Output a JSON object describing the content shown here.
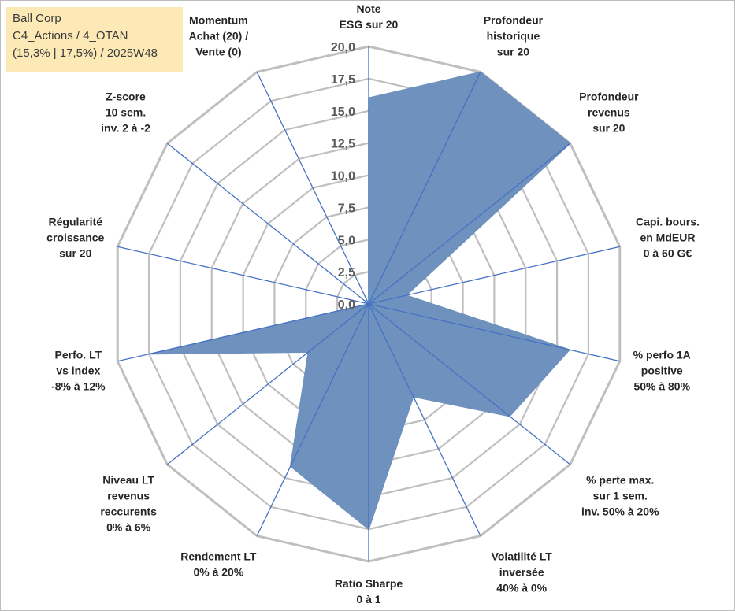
{
  "info": {
    "line1": "Ball Corp",
    "line2": "C4_Actions / 4_OTAN",
    "line3": "(15,3% | 17,5%) / 2025W48"
  },
  "chart_data": {
    "type": "radar",
    "scale": {
      "min": 0,
      "max": 20,
      "step": 2.5
    },
    "tick_labels": [
      "0,0",
      "2,5",
      "5,0",
      "7,5",
      "10,0",
      "12,5",
      "15,0",
      "17,5",
      "20,0"
    ],
    "axes": [
      [
        "Note",
        "ESG sur 20"
      ],
      [
        "Profondeur",
        "historique",
        "sur 20"
      ],
      [
        "Profondeur",
        "revenus",
        "sur 20"
      ],
      [
        "Capi. bours.",
        "en MdEUR",
        "0 à 60 G€"
      ],
      [
        "% perfo 1A",
        "positive",
        "50% à 80%"
      ],
      [
        "% perte max.",
        "sur 1 sem.",
        "inv. 50% à 20%"
      ],
      [
        "Volatilité LT",
        "inversée",
        "40% à 0%"
      ],
      [
        "Ratio Sharpe",
        "0 à 1"
      ],
      [
        "Rendement LT",
        "0% à 20%"
      ],
      [
        "Niveau LT",
        "revenus",
        "reccurents",
        "0% à 6%"
      ],
      [
        "Perfo. LT",
        "vs index",
        "-8% à 12%"
      ],
      [
        "Régularité",
        "croissance",
        "sur 20"
      ],
      [
        "Z-score",
        "10 sem.",
        "inv. 2 à -2"
      ],
      [
        "Momentum",
        "Achat (20) /",
        "Vente (0)"
      ]
    ],
    "values": [
      16,
      20,
      20,
      3,
      16,
      14,
      8,
      17.5,
      14,
      6,
      17.5,
      0,
      0,
      0
    ],
    "fill_color": "#6f91bd",
    "line_color": "#4472c4",
    "grid_color": "#bfbfbf"
  }
}
